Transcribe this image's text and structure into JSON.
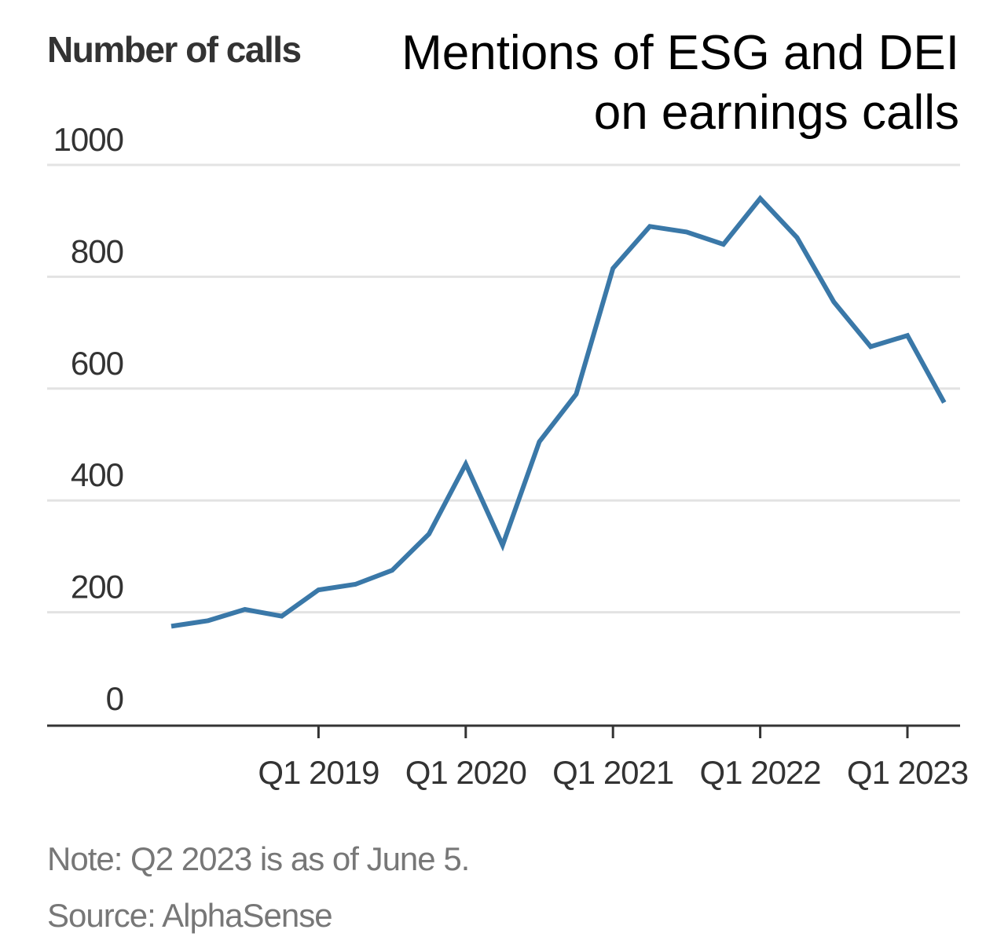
{
  "chart_data": {
    "type": "line",
    "title": "Mentions of ESG and DEI on earnings calls",
    "ylabel": "Number of calls",
    "xlabel": "",
    "ylim": [
      0,
      1000
    ],
    "yticks": [
      0,
      200,
      400,
      600,
      800,
      1000
    ],
    "xticks": [
      {
        "label": "Q1 2019",
        "quarter": "2019-Q1"
      },
      {
        "label": "Q1 2020",
        "quarter": "2020-Q1"
      },
      {
        "label": "Q1 2021",
        "quarter": "2021-Q1"
      },
      {
        "label": "Q1 2022",
        "quarter": "2022-Q1"
      },
      {
        "label": "Q1 2023",
        "quarter": "2023-Q1"
      }
    ],
    "grid": true,
    "line_color": "#3a78a8",
    "grid_color": "#e3e3e3",
    "x": [
      "2018-Q1",
      "2018-Q2",
      "2018-Q3",
      "2018-Q4",
      "2019-Q1",
      "2019-Q2",
      "2019-Q3",
      "2019-Q4",
      "2020-Q1",
      "2020-Q2",
      "2020-Q3",
      "2020-Q4",
      "2021-Q1",
      "2021-Q2",
      "2021-Q3",
      "2021-Q4",
      "2022-Q1",
      "2022-Q2",
      "2022-Q3",
      "2022-Q4",
      "2023-Q1",
      "2023-Q2"
    ],
    "series": [
      {
        "values": [
          175,
          185,
          205,
          193,
          240,
          250,
          275,
          340,
          465,
          320,
          505,
          590,
          815,
          890,
          880,
          858,
          940,
          870,
          755,
          675,
          695,
          575
        ]
      }
    ]
  },
  "notes": {
    "note": "Note: Q2 2023 is as of June 5.",
    "source": "Source: AlphaSense"
  }
}
